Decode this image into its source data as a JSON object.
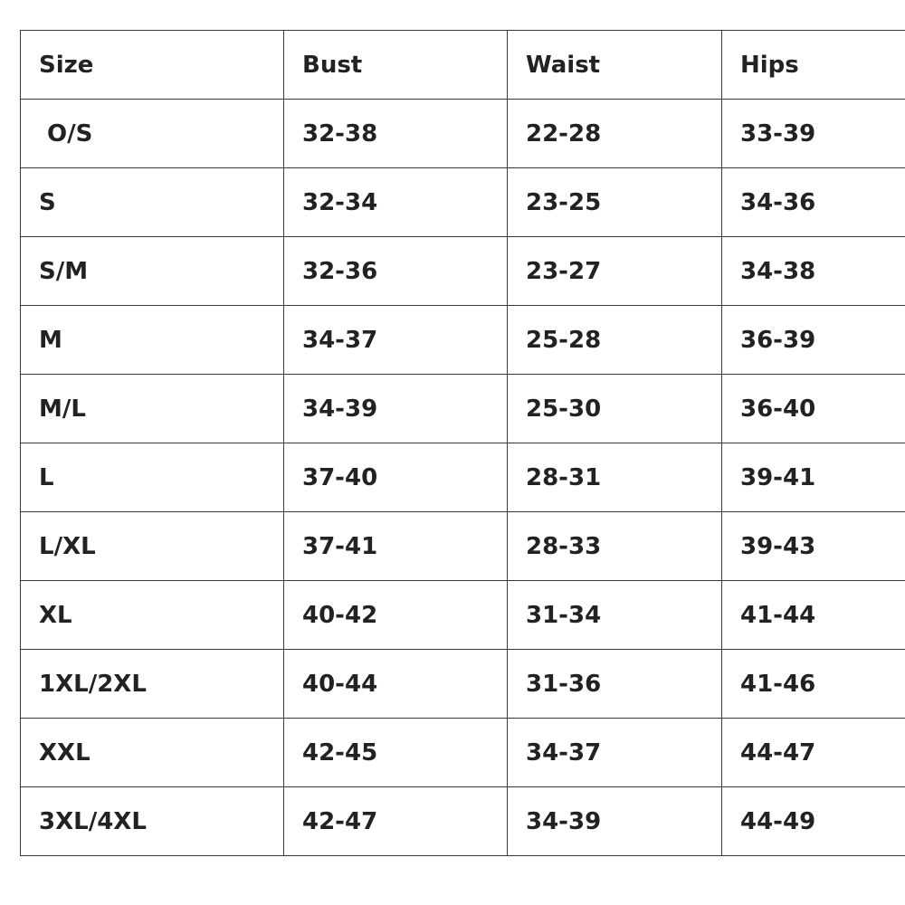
{
  "table": {
    "header": [
      "Size",
      "Bust",
      "Waist",
      "Hips"
    ],
    "rows": [
      [
        " O/S",
        "32-38",
        "22-28",
        "33-39"
      ],
      [
        "S",
        "32-34",
        "23-25",
        "34-36"
      ],
      [
        "S/M",
        "32-36",
        "23-27",
        "34-38"
      ],
      [
        "M",
        "34-37",
        "25-28",
        "36-39"
      ],
      [
        "M/L",
        "34-39",
        "25-30",
        "36-40"
      ],
      [
        "L",
        "37-40",
        "28-31",
        "39-41"
      ],
      [
        "L/XL",
        "37-41",
        "28-33",
        "39-43"
      ],
      [
        "XL",
        "40-42",
        "31-34",
        "41-44"
      ],
      [
        "1XL/2XL",
        "40-44",
        "31-36",
        "41-46"
      ],
      [
        "XXL",
        "42-45",
        "34-37",
        "44-47"
      ],
      [
        "3XL/4XL",
        "42-47",
        "34-39",
        "44-49"
      ]
    ]
  }
}
